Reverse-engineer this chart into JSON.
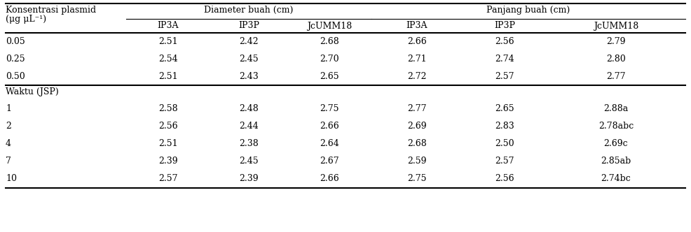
{
  "section1_label": "Konsentrasi plasmid",
  "section1_sublabel": "(μg μL⁻¹)",
  "section2_label": "Waktu (JSP)",
  "diam_label": "Diameter buah (cm)",
  "panj_label": "Panjang buah (cm)",
  "col_labels": [
    "IP3A",
    "IP3P",
    "JcUMM18",
    "IP3A",
    "IP3P",
    "JcUMM18"
  ],
  "rows_konsentrasi": [
    [
      "0.05",
      "2.51",
      "2.42",
      "2.68",
      "2.66",
      "2.56",
      "2.79"
    ],
    [
      "0.25",
      "2.54",
      "2.45",
      "2.70",
      "2.71",
      "2.74",
      "2.80"
    ],
    [
      "0.50",
      "2.51",
      "2.43",
      "2.65",
      "2.72",
      "2.57",
      "2.77"
    ]
  ],
  "rows_waktu": [
    [
      "1",
      "2.58",
      "2.48",
      "2.75",
      "2.77",
      "2.65",
      "2.88a"
    ],
    [
      "2",
      "2.56",
      "2.44",
      "2.66",
      "2.69",
      "2.83",
      "2.78abc"
    ],
    [
      "4",
      "2.51",
      "2.38",
      "2.64",
      "2.68",
      "2.50",
      "2.69c"
    ],
    [
      "7",
      "2.39",
      "2.45",
      "2.67",
      "2.59",
      "2.57",
      "2.85ab"
    ],
    [
      "10",
      "2.57",
      "2.39",
      "2.66",
      "2.75",
      "2.56",
      "2.74bc"
    ]
  ],
  "font_size": 9.0,
  "background_color": "#ffffff",
  "text_color": "#000000",
  "line_color": "#000000"
}
